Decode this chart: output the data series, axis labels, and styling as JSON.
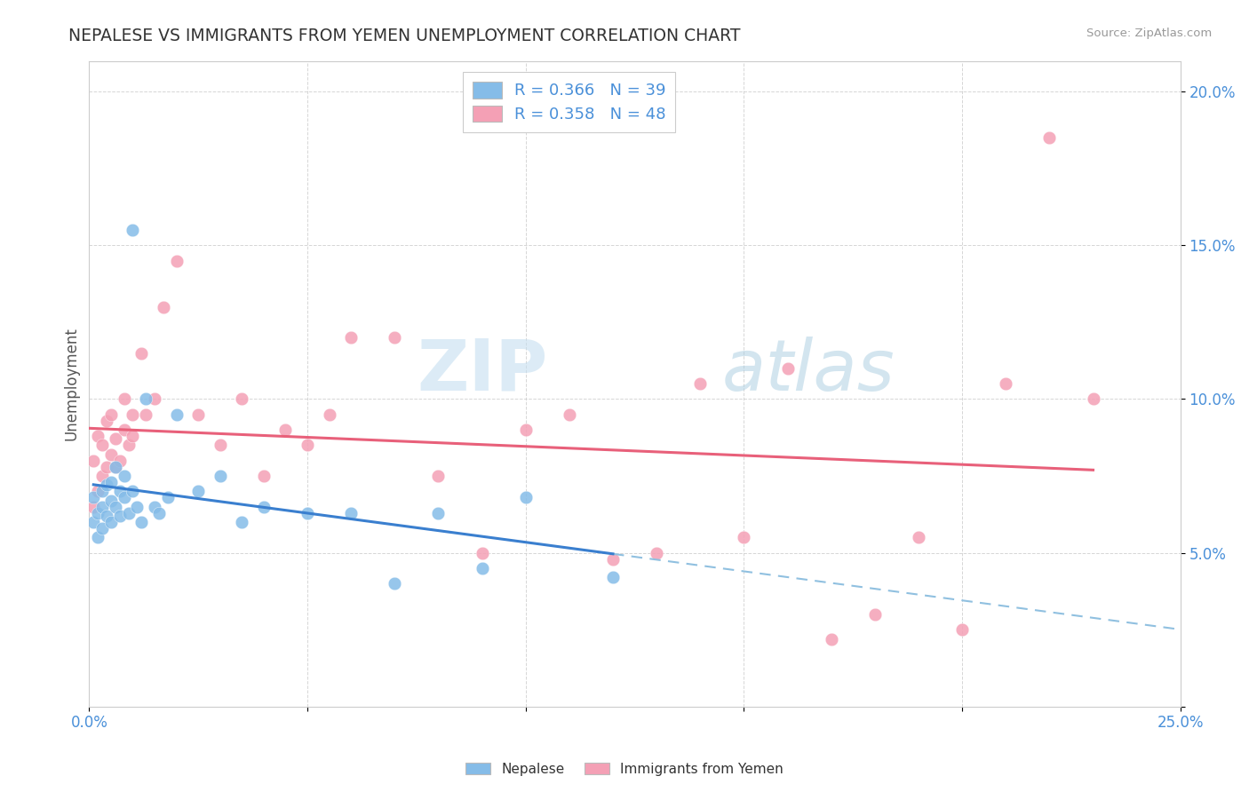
{
  "title": "NEPALESE VS IMMIGRANTS FROM YEMEN UNEMPLOYMENT CORRELATION CHART",
  "source_text": "Source: ZipAtlas.com",
  "ylabel": "Unemployment",
  "xlim": [
    0.0,
    0.25
  ],
  "ylim": [
    0.0,
    0.21
  ],
  "xtick_positions": [
    0.0,
    0.05,
    0.1,
    0.15,
    0.2,
    0.25
  ],
  "ytick_positions": [
    0.0,
    0.05,
    0.1,
    0.15,
    0.2
  ],
  "nepalese_color": "#85bce8",
  "yemen_color": "#f4a0b5",
  "nepalese_line_color": "#3a7fcf",
  "yemen_line_color": "#e8607a",
  "dashed_line_color": "#90c0e0",
  "R_nepalese": 0.366,
  "N_nepalese": 39,
  "R_yemen": 0.358,
  "N_yemen": 48,
  "legend_label_nepalese": "Nepalese",
  "legend_label_yemen": "Immigrants from Yemen",
  "watermark_zip": "ZIP",
  "watermark_atlas": "atlas",
  "nepalese_scatter_x": [
    0.001,
    0.001,
    0.002,
    0.002,
    0.003,
    0.003,
    0.003,
    0.004,
    0.004,
    0.005,
    0.005,
    0.005,
    0.006,
    0.006,
    0.007,
    0.007,
    0.008,
    0.008,
    0.009,
    0.01,
    0.01,
    0.011,
    0.012,
    0.013,
    0.015,
    0.016,
    0.018,
    0.02,
    0.025,
    0.03,
    0.035,
    0.04,
    0.05,
    0.06,
    0.07,
    0.08,
    0.09,
    0.1,
    0.12
  ],
  "nepalese_scatter_y": [
    0.06,
    0.068,
    0.055,
    0.063,
    0.07,
    0.065,
    0.058,
    0.072,
    0.062,
    0.067,
    0.073,
    0.06,
    0.065,
    0.078,
    0.062,
    0.07,
    0.075,
    0.068,
    0.063,
    0.155,
    0.07,
    0.065,
    0.06,
    0.1,
    0.065,
    0.063,
    0.068,
    0.095,
    0.07,
    0.075,
    0.06,
    0.065,
    0.063,
    0.063,
    0.04,
    0.063,
    0.045,
    0.068,
    0.042
  ],
  "yemen_scatter_x": [
    0.001,
    0.001,
    0.002,
    0.002,
    0.003,
    0.003,
    0.004,
    0.004,
    0.005,
    0.005,
    0.006,
    0.006,
    0.007,
    0.008,
    0.008,
    0.009,
    0.01,
    0.01,
    0.012,
    0.013,
    0.015,
    0.017,
    0.02,
    0.025,
    0.03,
    0.035,
    0.04,
    0.045,
    0.05,
    0.055,
    0.06,
    0.07,
    0.08,
    0.09,
    0.1,
    0.11,
    0.12,
    0.13,
    0.14,
    0.15,
    0.16,
    0.17,
    0.18,
    0.19,
    0.2,
    0.21,
    0.22,
    0.23
  ],
  "yemen_scatter_y": [
    0.065,
    0.08,
    0.07,
    0.088,
    0.075,
    0.085,
    0.078,
    0.093,
    0.082,
    0.095,
    0.087,
    0.078,
    0.08,
    0.09,
    0.1,
    0.085,
    0.088,
    0.095,
    0.115,
    0.095,
    0.1,
    0.13,
    0.145,
    0.095,
    0.085,
    0.1,
    0.075,
    0.09,
    0.085,
    0.095,
    0.12,
    0.12,
    0.075,
    0.05,
    0.09,
    0.095,
    0.048,
    0.05,
    0.105,
    0.055,
    0.11,
    0.022,
    0.03,
    0.055,
    0.025,
    0.105,
    0.185,
    0.1
  ]
}
